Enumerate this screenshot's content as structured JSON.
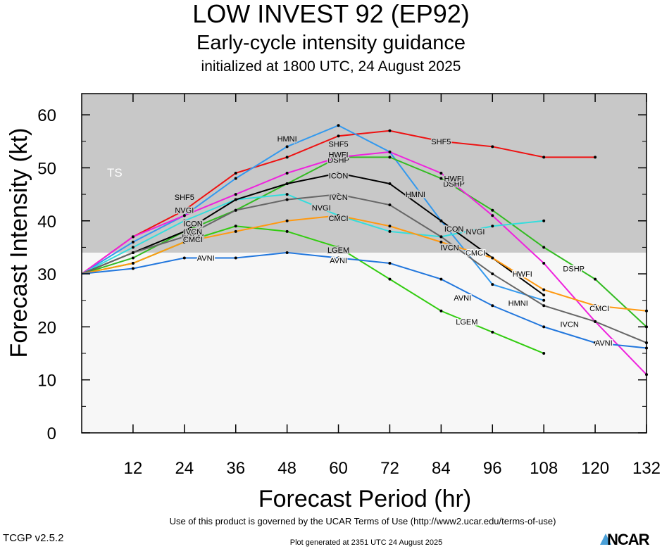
{
  "title": "LOW INVEST 92 (EP92)",
  "subtitle": "Early-cycle intensity guidance",
  "init_line": "initialized at 1800 UTC, 24 August 2025",
  "terms": "Use of this product is governed by the UCAR Terms of Use (http://www2.ucar.edu/terms-of-use)",
  "generated": "Plot generated at 2351 UTC   24 August 2025",
  "version": "TCGP v2.5.2",
  "logo": "NCAR",
  "colors": {
    "ts_band": "#c8c8c8",
    "below_band": "#f7f7f7"
  },
  "chart_data": {
    "type": "line",
    "xlabel": "Forecast Period (hr)",
    "ylabel": "Forecast Intensity (kt)",
    "xlim": [
      0,
      132
    ],
    "ylim": [
      0,
      64
    ],
    "xticks": [
      12,
      24,
      36,
      48,
      60,
      72,
      84,
      96,
      108,
      120,
      132
    ],
    "yticks": [
      0,
      10,
      20,
      30,
      40,
      50,
      60
    ],
    "band": {
      "label": "TS",
      "from": 34,
      "to": 64
    },
    "series": [
      {
        "name": "SHF5",
        "color": "#ee1111",
        "x": [
          0,
          12,
          24,
          36,
          48,
          60,
          72,
          84,
          96,
          108,
          120
        ],
        "y": [
          30,
          37,
          42,
          49,
          52,
          56,
          57,
          55,
          54,
          52,
          52
        ],
        "labels": [
          [
            24,
            44.5
          ],
          [
            60,
            54.5
          ],
          [
            84,
            55
          ]
        ]
      },
      {
        "name": "HMNI",
        "color": "#3399ee",
        "x": [
          0,
          12,
          24,
          36,
          48,
          60,
          72,
          84,
          96,
          108
        ],
        "y": [
          30,
          36,
          41,
          48,
          54,
          58,
          53,
          40,
          28,
          25
        ],
        "labels": [
          [
            48,
            55.5
          ],
          [
            78,
            45
          ],
          [
            102,
            24.5
          ]
        ]
      },
      {
        "name": "DSHP",
        "color": "#33bb22",
        "x": [
          0,
          12,
          24,
          36,
          48,
          60,
          72,
          84,
          96,
          108,
          120,
          132
        ],
        "y": [
          30,
          33,
          38,
          42,
          47,
          52,
          52,
          48,
          42,
          35,
          29,
          20
        ],
        "labels": [
          [
            60,
            51.5
          ],
          [
            87,
            47
          ],
          [
            115,
            31
          ]
        ]
      },
      {
        "name": "LGEM",
        "color": "#33cc11",
        "x": [
          0,
          12,
          24,
          36,
          48,
          60,
          72,
          84,
          96,
          108
        ],
        "y": [
          30,
          32,
          36,
          39,
          38,
          35,
          29,
          23,
          19,
          15
        ],
        "labels": [
          [
            26,
            37
          ],
          [
            60,
            34.5
          ],
          [
            90,
            21
          ]
        ]
      },
      {
        "name": "HWFI",
        "color": "#ee22dd",
        "x": [
          0,
          12,
          24,
          36,
          48,
          60,
          72,
          84,
          96,
          108,
          120,
          132
        ],
        "y": [
          30,
          37,
          41,
          45,
          49,
          52,
          53,
          49,
          41,
          32,
          21,
          11
        ],
        "labels": [
          [
            60,
            52.5
          ],
          [
            87,
            48
          ],
          [
            103,
            30
          ]
        ]
      },
      {
        "name": "NVGI",
        "color": "#33dddd",
        "x": [
          0,
          12,
          24,
          36,
          48,
          60,
          72,
          84,
          96,
          108
        ],
        "y": [
          30,
          35,
          40,
          44,
          45,
          41,
          38,
          37,
          39,
          40
        ],
        "labels": [
          [
            24,
            42
          ],
          [
            56,
            42.5
          ],
          [
            92,
            38
          ]
        ]
      },
      {
        "name": "ICON",
        "color": "#000000",
        "x": [
          0,
          12,
          24,
          36,
          48,
          60,
          72,
          84,
          96,
          108
        ],
        "y": [
          30,
          34,
          38,
          44,
          47,
          49,
          47,
          40,
          33,
          26
        ],
        "labels": [
          [
            26,
            39.5
          ],
          [
            60,
            48.5
          ],
          [
            87,
            38.5
          ]
        ]
      },
      {
        "name": "IVCN",
        "color": "#666666",
        "x": [
          0,
          12,
          24,
          36,
          48,
          60,
          72,
          84,
          96,
          108,
          120,
          132
        ],
        "y": [
          30,
          34,
          37,
          42,
          44,
          45,
          43,
          37,
          30,
          24,
          21,
          17
        ],
        "labels": [
          [
            26,
            38
          ],
          [
            60,
            44.5
          ],
          [
            86,
            35
          ],
          [
            114,
            20.5
          ]
        ]
      },
      {
        "name": "CMCI",
        "color": "#ff9911",
        "x": [
          0,
          12,
          24,
          36,
          48,
          60,
          72,
          84,
          96,
          108,
          120,
          132
        ],
        "y": [
          30,
          32,
          36,
          38,
          40,
          41,
          39,
          36,
          33,
          27,
          24,
          23
        ],
        "labels": [
          [
            26,
            36.5
          ],
          [
            60,
            40.5
          ],
          [
            92,
            34
          ],
          [
            121,
            23.5
          ]
        ]
      },
      {
        "name": "AVNI",
        "color": "#2277dd",
        "x": [
          0,
          12,
          24,
          36,
          48,
          60,
          72,
          84,
          96,
          108,
          120,
          132
        ],
        "y": [
          30,
          31,
          33,
          33,
          34,
          33,
          32,
          29,
          24,
          20,
          17,
          16
        ],
        "labels": [
          [
            29,
            33
          ],
          [
            60,
            32.5
          ],
          [
            89,
            25.5
          ],
          [
            122,
            17
          ]
        ]
      }
    ]
  }
}
